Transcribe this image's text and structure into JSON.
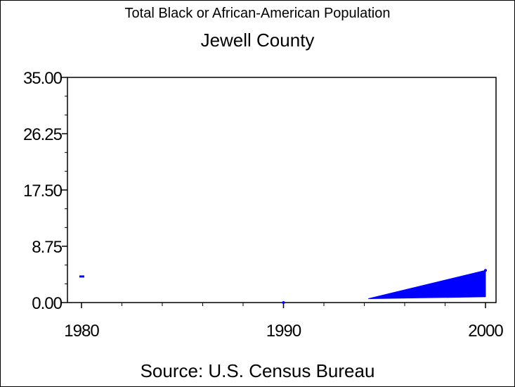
{
  "chart_data": {
    "type": "area",
    "title": "Total Black or African-American Population",
    "subtitle": "Jewell County",
    "source": "Source: U.S. Census Bureau",
    "xlabel": "",
    "ylabel": "",
    "xlim": [
      1980,
      2000
    ],
    "ylim": [
      0,
      35
    ],
    "x_ticks": [
      "1980",
      "1990",
      "2000"
    ],
    "y_ticks": [
      "0.00",
      "8.75",
      "17.50",
      "26.25",
      "35.00"
    ],
    "grid": false,
    "series": [
      {
        "x": [
          1980,
          1990,
          2000
        ],
        "values": [
          4,
          0,
          5
        ],
        "color": "#0000ff"
      }
    ]
  }
}
